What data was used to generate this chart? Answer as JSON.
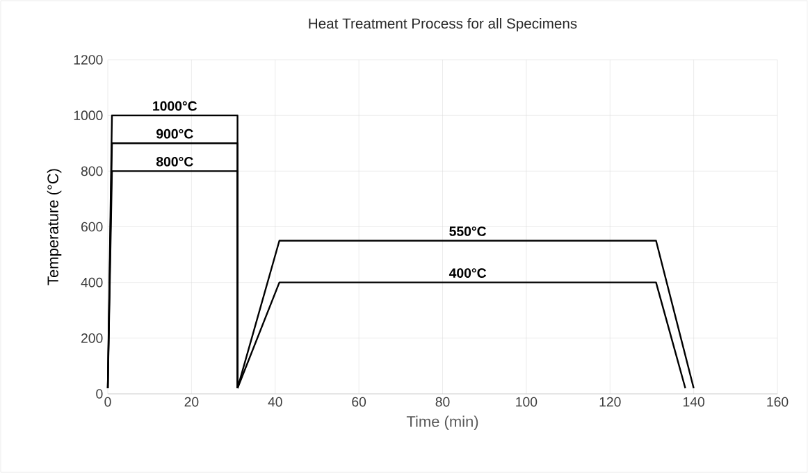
{
  "chart_data": {
    "type": "line",
    "title": "Heat Treatment Process for all Specimens",
    "xlabel": "Time (min)",
    "ylabel": "Temperature (°C)",
    "series": [
      {
        "color": "#000000",
        "x": [
          0,
          1,
          31,
          31
        ],
        "values": [
          20,
          1000,
          1000,
          20
        ]
      },
      {
        "color": "#000000",
        "x": [
          0,
          1,
          31,
          31
        ],
        "values": [
          20,
          900,
          900,
          20
        ]
      },
      {
        "color": "#000000",
        "x": [
          0,
          1,
          31,
          31
        ],
        "values": [
          20,
          800,
          800,
          20
        ]
      },
      {
        "color": "#000000",
        "x": [
          31,
          41,
          131,
          140
        ],
        "values": [
          20,
          550,
          550,
          20
        ]
      },
      {
        "color": "#000000",
        "x": [
          31,
          41,
          131,
          138
        ],
        "values": [
          20,
          400,
          400,
          20
        ]
      }
    ],
    "annotations": [
      "1000°C",
      "900°C",
      "800°C",
      "550°C",
      "400°C"
    ],
    "xlim": [
      0,
      160
    ],
    "xticks": [
      0,
      20,
      40,
      60,
      80,
      100,
      120,
      140,
      160
    ],
    "ylim": [
      0,
      1200
    ],
    "yticks": [
      0,
      200,
      400,
      600,
      800,
      1000,
      1200
    ],
    "grid": true,
    "marker": "none",
    "line_style": "solid"
  }
}
